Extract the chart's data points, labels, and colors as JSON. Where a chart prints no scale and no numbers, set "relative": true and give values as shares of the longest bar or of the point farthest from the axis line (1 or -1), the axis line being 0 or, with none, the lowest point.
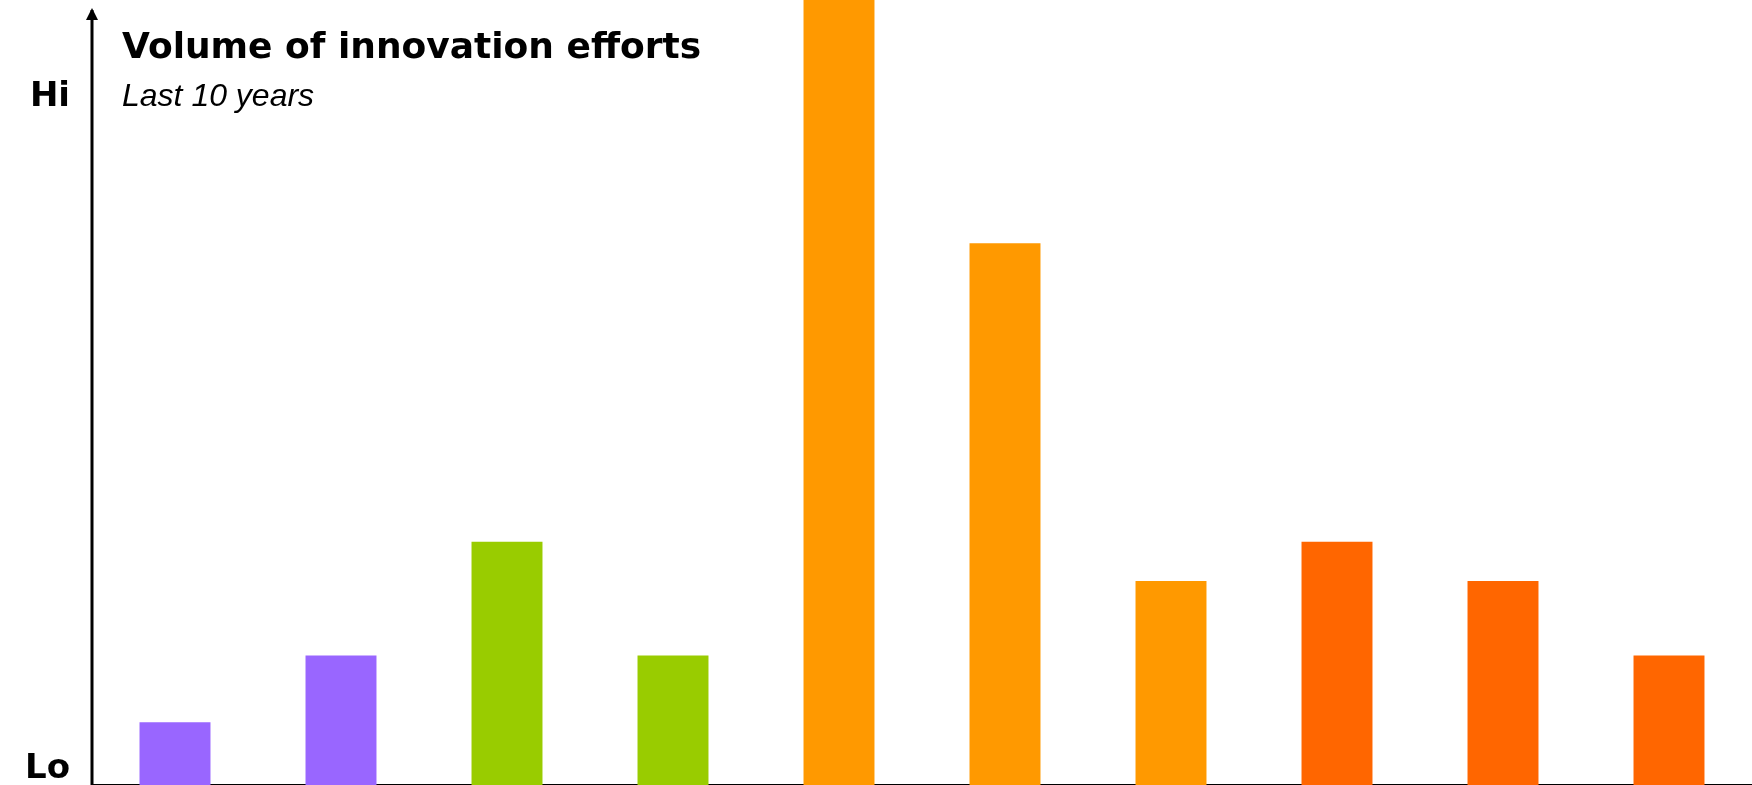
{
  "chart_data": {
    "type": "bar",
    "title": "Volume of innovation efforts",
    "subtitle": "Last 10 years",
    "annotations": [
      "Hi",
      "Lo"
    ],
    "categories": [
      null,
      null,
      null,
      null,
      null,
      null,
      null,
      null,
      null,
      null
    ],
    "values": [
      0.08,
      0.165,
      0.31,
      0.165,
      1,
      0.69,
      0.26,
      0.31,
      0.26,
      0.165
    ],
    "colors": [
      "#9966ff",
      "#9966ff",
      "#99cc00",
      "#99cc00",
      "#ff9900",
      "#ff9900",
      "#ff9900",
      "#ff6600",
      "#ff6600",
      "#ff6600"
    ],
    "relative": true
  }
}
